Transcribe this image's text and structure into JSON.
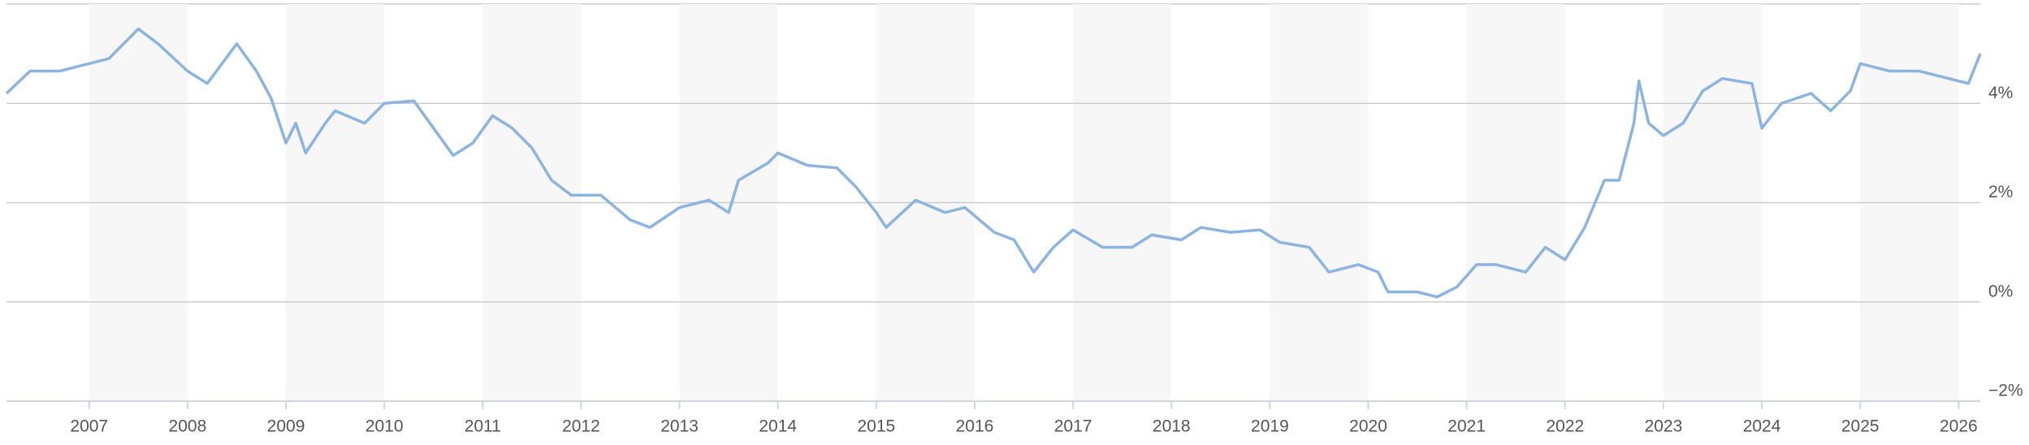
{
  "chart_data": {
    "type": "line",
    "x": [
      2006.16,
      2006.4,
      2006.7,
      2007.0,
      2007.2,
      2007.5,
      2007.7,
      2008.0,
      2008.2,
      2008.5,
      2008.7,
      2008.85,
      2009.0,
      2009.1,
      2009.2,
      2009.4,
      2009.5,
      2009.8,
      2010.0,
      2010.3,
      2010.5,
      2010.7,
      2010.9,
      2011.1,
      2011.3,
      2011.5,
      2011.7,
      2011.9,
      2012.2,
      2012.5,
      2012.7,
      2013.0,
      2013.3,
      2013.5,
      2013.6,
      2013.9,
      2014.0,
      2014.3,
      2014.6,
      2014.8,
      2015.0,
      2015.1,
      2015.4,
      2015.7,
      2015.9,
      2016.2,
      2016.4,
      2016.6,
      2016.8,
      2017.0,
      2017.3,
      2017.6,
      2017.8,
      2018.1,
      2018.3,
      2018.6,
      2018.9,
      2019.1,
      2019.4,
      2019.6,
      2019.9,
      2020.1,
      2020.2,
      2020.5,
      2020.7,
      2020.9,
      2021.1,
      2021.3,
      2021.6,
      2021.8,
      2022.0,
      2022.2,
      2022.4,
      2022.55,
      2022.7,
      2022.75,
      2022.85,
      2023.0,
      2023.2,
      2023.4,
      2023.6,
      2023.9,
      2024.0,
      2024.2,
      2024.5,
      2024.7,
      2024.9,
      2025.0,
      2025.3,
      2025.6,
      2025.9,
      2026.1,
      2026.22
    ],
    "series": [
      {
        "color": "#8ab4e8",
        "values": [
          4.2,
          4.65,
          4.65,
          4.8,
          4.9,
          5.5,
          5.2,
          4.65,
          4.4,
          5.2,
          4.65,
          4.1,
          3.2,
          3.6,
          3.0,
          3.6,
          3.85,
          3.6,
          4.0,
          4.05,
          3.5,
          2.95,
          3.2,
          3.75,
          3.5,
          3.1,
          2.45,
          2.15,
          2.15,
          1.65,
          1.5,
          1.9,
          2.05,
          1.8,
          2.45,
          2.8,
          3.0,
          2.75,
          2.7,
          2.3,
          1.8,
          1.5,
          2.05,
          1.8,
          1.9,
          1.4,
          1.25,
          0.6,
          1.1,
          1.45,
          1.1,
          1.1,
          1.35,
          1.25,
          1.5,
          1.4,
          1.45,
          1.2,
          1.1,
          0.6,
          0.75,
          0.6,
          0.2,
          0.2,
          0.1,
          0.3,
          0.75,
          0.75,
          0.6,
          1.1,
          0.85,
          1.5,
          2.45,
          2.45,
          3.6,
          4.45,
          3.6,
          3.35,
          3.6,
          4.25,
          4.5,
          4.4,
          3.5,
          4.0,
          4.2,
          3.85,
          4.25,
          4.8,
          4.65,
          4.65,
          4.5,
          4.4,
          5.0
        ]
      }
    ],
    "xlim": [
      2006.16,
      2026.22
    ],
    "xticks": [
      2007,
      2008,
      2009,
      2010,
      2011,
      2012,
      2013,
      2014,
      2015,
      2016,
      2017,
      2018,
      2019,
      2020,
      2021,
      2022,
      2023,
      2024,
      2025,
      2026
    ],
    "ylim": [
      -2,
      6
    ],
    "yticks": [
      {
        "value": -2,
        "label": "−2%"
      },
      {
        "value": 0,
        "label": "0%"
      },
      {
        "value": 2,
        "label": "2%"
      },
      {
        "value": 4,
        "label": "4%"
      }
    ],
    "grid": true,
    "shaded_bands": true
  }
}
